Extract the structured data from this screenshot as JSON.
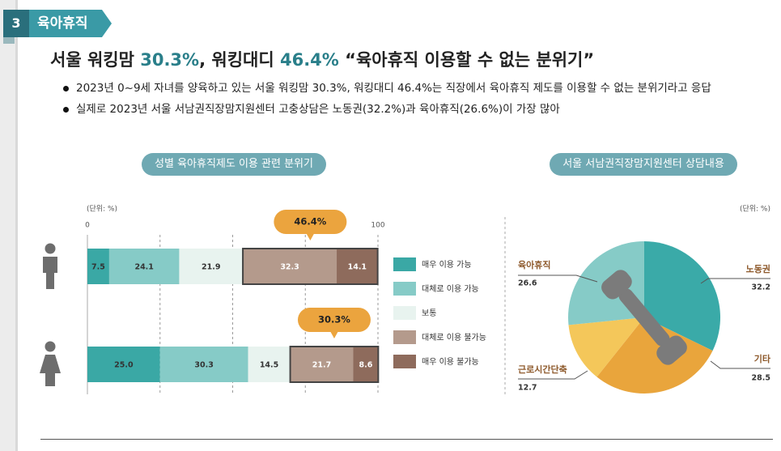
{
  "section": {
    "number": "3",
    "label": "육아휴직"
  },
  "headline": {
    "part1": "서울 워킹맘 ",
    "value1": "30.3%",
    "part2": ", 워킹대디 ",
    "value2": "46.4%",
    "part3": " “육아휴직 이용할 수 없는 분위기”"
  },
  "bullets": [
    "2023년 0~9세 자녀를 양육하고 있는 서울 워킹맘 30.3%, 워킹대디 46.4%는 직장에서 육아휴직 제도를 이용할 수 없는 분위기라고 응답",
    "실제로 2023년 서울 서남권직장맘지원센터 고충상담은 노동권(32.2%)과 육아휴직(26.6%)이 가장 많아"
  ],
  "colors": {
    "very_possible": "#3aa8a5",
    "mostly_possible": "#86cbc7",
    "neutral": "#e8f3ef",
    "mostly_impossible": "#b49a8c",
    "very_impossible": "#8e6b5c",
    "callout": "#eba43e",
    "pie_labor": "#3aaaa8",
    "pie_other": "#e9a53c",
    "pie_hours": "#f4c75a",
    "pie_leave": "#86cbc7",
    "label_brown": "#8e5a2c"
  },
  "chart_data": [
    {
      "type": "bar",
      "orientation": "horizontal",
      "stacked": true,
      "title": "성별 육아휴직제도 이용 관련 분위기",
      "unit_label": "(단위: %)",
      "xlim": [
        0,
        100
      ],
      "x_tick_labels": [
        "0",
        "100"
      ],
      "categories": [
        "male",
        "female"
      ],
      "series": [
        {
          "name": "매우 이용 가능",
          "values": [
            7.5,
            25.0
          ],
          "labels": [
            "7.5",
            "25.0"
          ]
        },
        {
          "name": "대체로 이용 가능",
          "values": [
            24.1,
            30.3
          ],
          "labels": [
            "24.1",
            "30.3"
          ]
        },
        {
          "name": "보통",
          "values": [
            21.9,
            14.5
          ],
          "labels": [
            "21.9",
            "14.5"
          ]
        },
        {
          "name": "대체로 이용 불가능",
          "values": [
            32.3,
            21.7
          ],
          "labels": [
            "32.3",
            "21.7"
          ]
        },
        {
          "name": "매우 이용 불가능",
          "values": [
            14.1,
            8.6
          ],
          "labels": [
            "14.1",
            "8.6"
          ]
        }
      ],
      "callouts": [
        "46.4%",
        "30.3%"
      ],
      "legend_position": "right"
    },
    {
      "type": "pie",
      "title": "서울 서남권직장맘지원센터 상담내용",
      "unit_label": "(단위: %)",
      "slices": [
        {
          "name": "노동권",
          "value": 32.2,
          "value_label": "32.2"
        },
        {
          "name": "기타",
          "value": 28.5,
          "value_label": "28.5"
        },
        {
          "name": "근로시간단축",
          "value": 12.7,
          "value_label": "12.7"
        },
        {
          "name": "육아휴직",
          "value": 26.6,
          "value_label": "26.6"
        }
      ]
    }
  ]
}
